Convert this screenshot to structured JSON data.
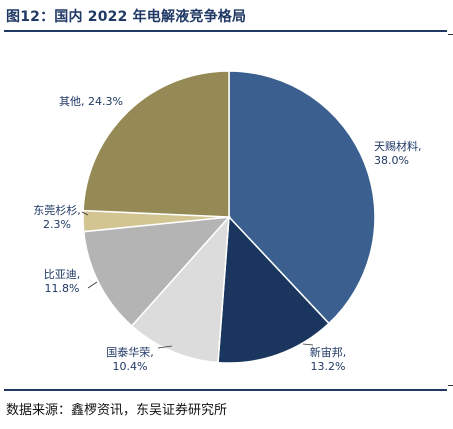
{
  "title": "图12：国内 2022 年电解液竞争格局",
  "source": "数据来源：鑫椤资讯，东吴证券研究所",
  "chart_data": {
    "type": "pie",
    "unit": "%",
    "slices": [
      {
        "name": "天赐材料",
        "value": 38.0,
        "value_label": "38.0%",
        "color": "#3b6090"
      },
      {
        "name": "新宙邦",
        "value": 13.2,
        "value_label": "13.2%",
        "color": "#1a365e"
      },
      {
        "name": "国泰华荣",
        "value": 10.4,
        "value_label": "10.4%",
        "color": "#dcdcdc"
      },
      {
        "name": "比亚迪",
        "value": 11.8,
        "value_label": "11.8%",
        "color": "#b4b4b4"
      },
      {
        "name": "东莞杉杉",
        "value": 2.3,
        "value_label": "2.3%",
        "color": "#d2c592"
      },
      {
        "name": "其他",
        "value": 24.3,
        "value_label": "24.3%",
        "color": "#958a55"
      }
    ]
  }
}
